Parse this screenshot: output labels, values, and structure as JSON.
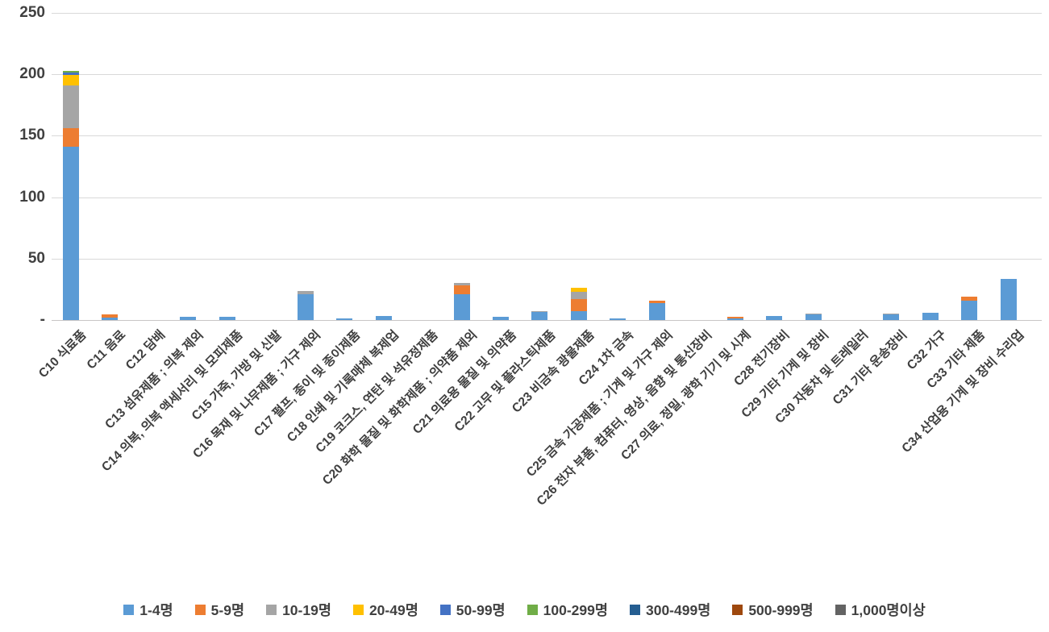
{
  "chart_data": {
    "type": "bar",
    "stacked": true,
    "title": "",
    "xlabel": "",
    "ylabel": "",
    "ylim": [
      0,
      250
    ],
    "grid": true,
    "legend_position": "bottom",
    "yticks": [
      {
        "value": 0,
        "label": "-"
      },
      {
        "value": 50,
        "label": "50"
      },
      {
        "value": 100,
        "label": "100"
      },
      {
        "value": 150,
        "label": "150"
      },
      {
        "value": 200,
        "label": "200"
      },
      {
        "value": 250,
        "label": "250"
      }
    ],
    "categories": [
      "C10 식료품",
      "C11 음료",
      "C12 담배",
      "C13 섬유제품 ; 의복 제외",
      "C14 의복, 의복 액세서리 및 모피제품",
      "C15 가죽, 가방 및 신발",
      "C16 목재 및 나무제품 ; 가구 제외",
      "C17 펄프, 종이 및 종이제품",
      "C18 인쇄 및 기록매체 복제업",
      "C19 코크스, 연탄 및 석유정제품",
      "C20 화학 물질 및 화학제품 ; 의약품 제외",
      "C21 의료용 물질 및 의약품",
      "C22 고무 및 플라스틱제품",
      "C23 비금속 광물제품",
      "C24 1차 금속",
      "C25 금속 가공제품 ; 기계 및 가구 제외",
      "C26 전자 부품, 컴퓨터, 영상, 음향 및 통신장비",
      "C27 의료, 정밀, 광학 기기 및 시계",
      "C28 전기장비",
      "C29 기타 기계 및 장비",
      "C30 자동차 및 트레일러",
      "C31 기타 운송장비",
      "C32 가구",
      "C33 기타 제품",
      "C34 산업용 기계 및 장비 수리업"
    ],
    "series": [
      {
        "name": "1-4명",
        "color": "#5B9BD5",
        "values": [
          141,
          2,
          0,
          2.5,
          2.5,
          0,
          21,
          1,
          3,
          0,
          21,
          2.5,
          6.5,
          7,
          1.5,
          14,
          0,
          1,
          3,
          4.5,
          0,
          4.5,
          6,
          16,
          33.5
        ]
      },
      {
        "name": "5-9명",
        "color": "#ED7D31",
        "values": [
          15,
          2.5,
          0,
          0,
          0,
          0,
          0,
          0,
          0,
          0,
          7.5,
          0,
          0,
          10,
          0,
          2,
          0,
          1.5,
          0,
          0,
          0,
          0,
          0,
          3,
          0
        ]
      },
      {
        "name": "10-19명",
        "color": "#A5A5A5",
        "values": [
          35,
          0,
          0,
          0,
          0,
          0,
          2.5,
          0,
          0,
          0,
          1.5,
          0,
          1,
          6,
          0,
          0,
          0,
          0,
          0,
          1,
          0,
          1,
          0,
          0,
          0
        ]
      },
      {
        "name": "20-49명",
        "color": "#FFC000",
        "values": [
          8.5,
          0,
          0,
          0,
          0,
          0,
          0,
          0,
          0,
          0,
          0,
          0,
          0,
          3,
          0,
          0,
          0,
          0,
          0,
          0,
          0,
          0,
          0,
          0,
          0
        ]
      },
      {
        "name": "50-99명",
        "color": "#4472C4",
        "values": [
          2,
          0,
          0,
          0,
          0,
          0,
          0,
          0,
          0,
          0,
          0,
          0,
          0,
          0,
          0,
          0,
          0,
          0,
          0,
          0,
          0,
          0,
          0,
          0,
          0
        ]
      },
      {
        "name": "100-299명",
        "color": "#70AD47",
        "values": [
          1,
          0,
          0,
          0,
          0,
          0,
          0,
          0,
          0,
          0,
          0,
          0,
          0,
          0,
          0,
          0,
          0,
          0,
          0,
          0,
          0,
          0,
          0,
          0,
          0
        ]
      },
      {
        "name": "300-499명",
        "color": "#255E91",
        "values": [
          0,
          0,
          0,
          0,
          0,
          0,
          0,
          0,
          0,
          0,
          0,
          0,
          0,
          0,
          0,
          0,
          0,
          0,
          0,
          0,
          0,
          0,
          0,
          0,
          0
        ]
      },
      {
        "name": "500-999명",
        "color": "#9E480E",
        "values": [
          0,
          0,
          0,
          0,
          0,
          0,
          0,
          0,
          0,
          0,
          0,
          0,
          0,
          0,
          0,
          0,
          0,
          0,
          0,
          0,
          0,
          0,
          0,
          0,
          0
        ]
      },
      {
        "name": "1,000명이상",
        "color": "#636363",
        "values": [
          0,
          0,
          0,
          0,
          0,
          0,
          0,
          0,
          0,
          0,
          0,
          0,
          0,
          0,
          0,
          0,
          0,
          0,
          0,
          0,
          0,
          0,
          0,
          0,
          0
        ]
      }
    ]
  }
}
